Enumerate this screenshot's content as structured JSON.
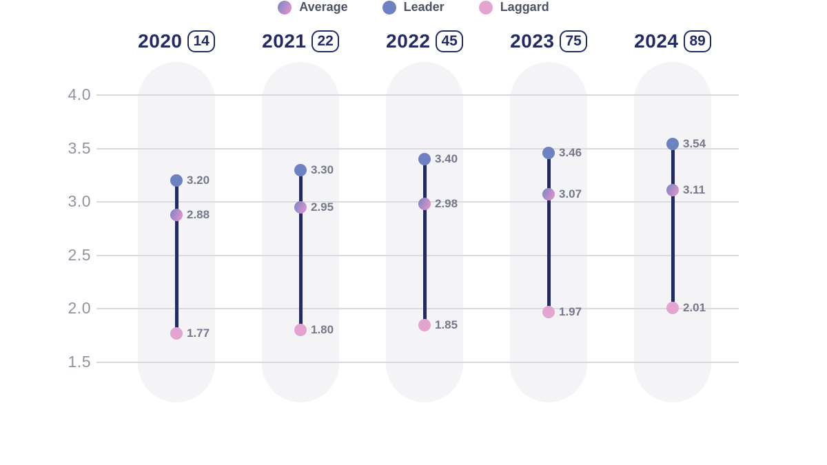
{
  "colors": {
    "navy": "#222b63",
    "leader_dot": "#6e81c2",
    "laggard_dot": "#e3a5cf",
    "average_gradient_start": "#8a86c8",
    "average_gradient_end": "#d893c8",
    "pill_bg": "#f4f4f6",
    "gridline": "#d9dade",
    "axis_label": "#9094a2",
    "value_label": "#75788a",
    "legend_label": "#4d5264"
  },
  "chart_data": {
    "type": "dumbbell",
    "title": "",
    "categories": [
      "2020",
      "2021",
      "2022",
      "2023",
      "2024"
    ],
    "category_counts": [
      "14",
      "22",
      "45",
      "75",
      "89"
    ],
    "series": [
      {
        "name": "Leader",
        "values": [
          3.2,
          3.3,
          3.4,
          3.46,
          3.54
        ]
      },
      {
        "name": "Average",
        "values": [
          2.88,
          2.95,
          2.98,
          3.07,
          3.11
        ]
      },
      {
        "name": "Laggard",
        "values": [
          1.77,
          1.8,
          1.85,
          1.97,
          2.01
        ]
      }
    ],
    "yticks": [
      4.0,
      3.5,
      3.0,
      2.5,
      2.0,
      1.5
    ],
    "ylim": [
      1.5,
      4.0
    ],
    "grid": true,
    "value_format": "2dp",
    "tick_format": "1dp",
    "legend_position": "bottom",
    "legend": [
      {
        "label": "Average",
        "swatch": "average"
      },
      {
        "label": "Leader",
        "swatch": "leader"
      },
      {
        "label": "Laggard",
        "swatch": "laggard"
      }
    ]
  }
}
